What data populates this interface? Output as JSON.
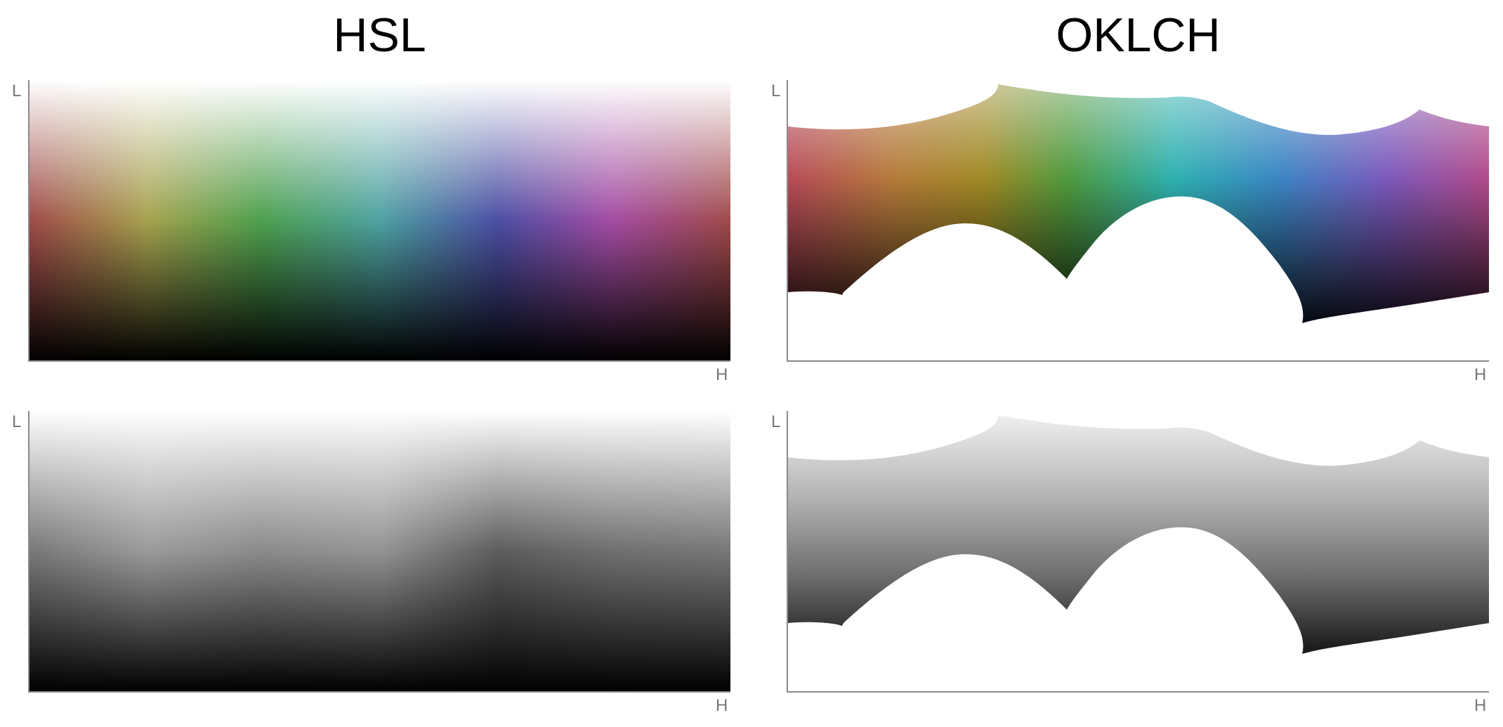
{
  "titles": {
    "left": "HSL",
    "right": "OKLCH"
  },
  "axes": {
    "y_label": "L",
    "x_label": "H"
  },
  "colors": {
    "axis": "#8a8a8a",
    "axis_text": "#777777",
    "hue_stops": [
      "#a04848",
      "#a0a048",
      "#48a048",
      "#48a0a0",
      "#4848a0",
      "#a048a0",
      "#a04848"
    ]
  }
}
